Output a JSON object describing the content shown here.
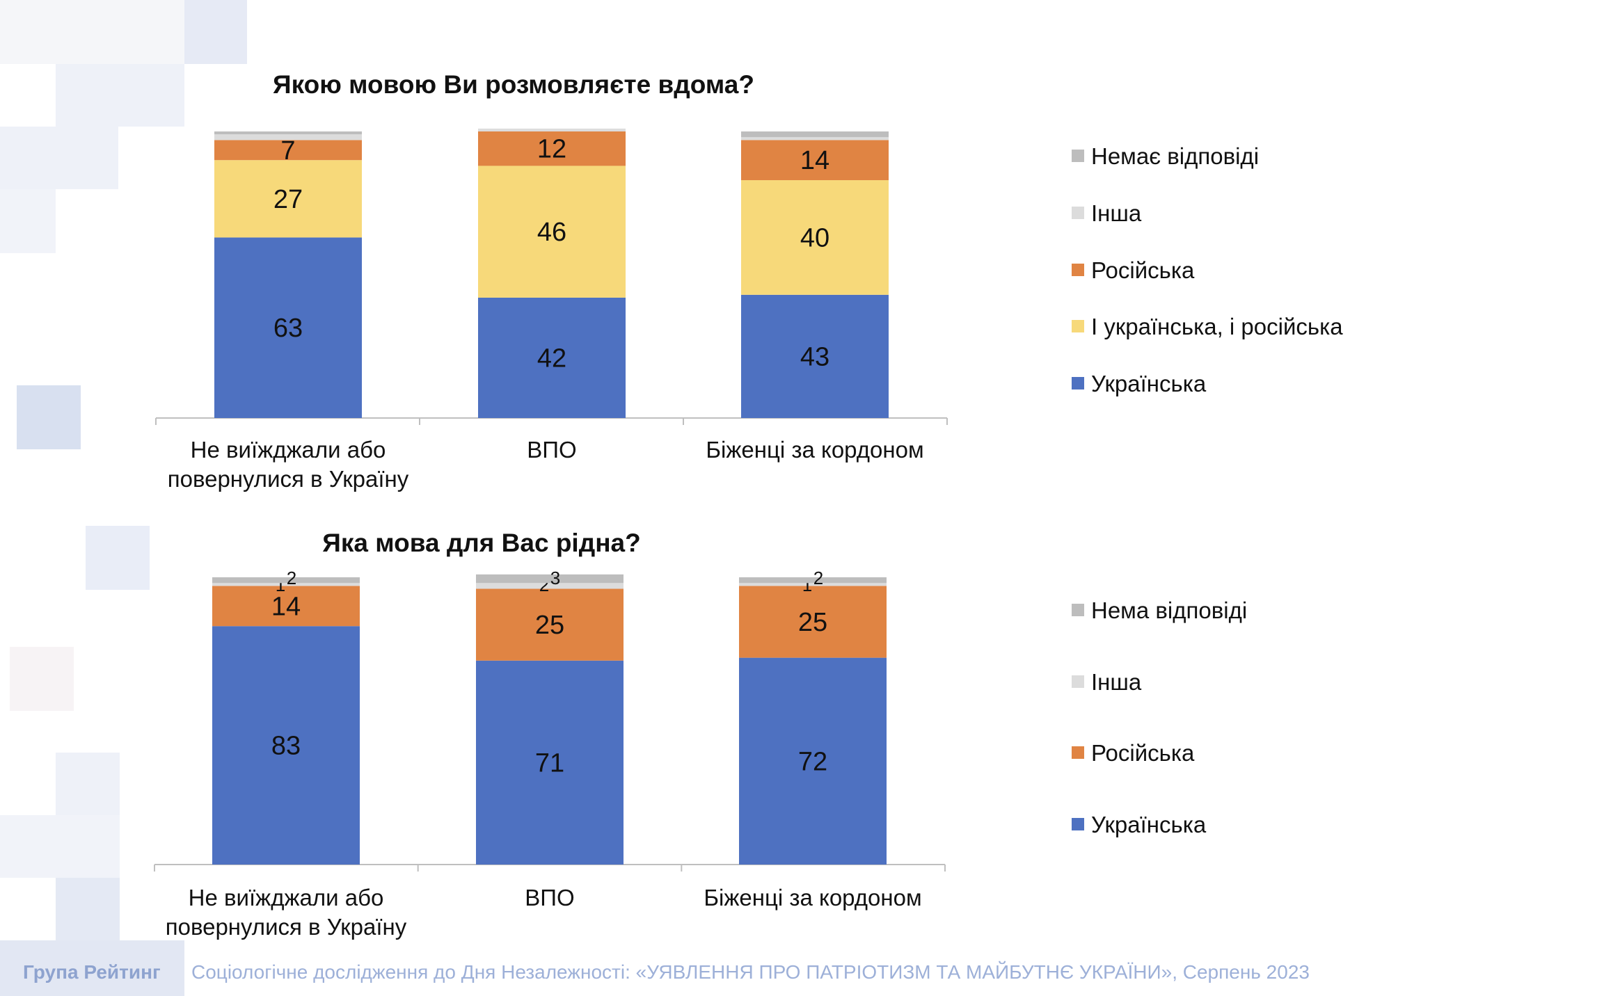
{
  "footer": {
    "brand": "Група Рейтинг",
    "text": "Соціологічне дослідження до Дня Незалежності: «УЯВЛЕННЯ ПРО ПАТРІОТИЗМ ТА МАЙБУТНЄ УКРАЇНИ», Серпень 2023"
  },
  "chart_data": [
    {
      "type": "bar",
      "stacked": true,
      "title": "Якою мовою Ви розмовляєте вдома?",
      "categories": [
        [
          "Не виїжджали або",
          "повернулися в Україну"
        ],
        [
          "ВПО"
        ],
        [
          "Біженці за кордоном"
        ]
      ],
      "ylim": [
        0,
        100
      ],
      "legend_position": "right",
      "series": [
        {
          "name": "Українська",
          "color": "#4e71c1",
          "values": [
            63,
            42,
            43
          ],
          "labels": [
            "63",
            "42",
            "43"
          ]
        },
        {
          "name": "І українська, і російська",
          "color": "#f7d97a",
          "values": [
            27,
            46,
            40
          ],
          "labels": [
            "27",
            "46",
            "40"
          ]
        },
        {
          "name": "Російська",
          "color": "#e08443",
          "values": [
            7,
            12,
            14
          ],
          "labels": [
            "7",
            "12",
            "14"
          ]
        },
        {
          "name": "Інша",
          "color": "#dcdcdc",
          "values": [
            2,
            1,
            1
          ],
          "labels": [
            "",
            "",
            ""
          ]
        },
        {
          "name": "Немає відповіді",
          "color": "#bdbdbd",
          "values": [
            1,
            0,
            2
          ],
          "labels": [
            "",
            "",
            ""
          ]
        }
      ]
    },
    {
      "type": "bar",
      "stacked": true,
      "title": "Яка мова для Вас рідна?",
      "categories": [
        [
          "Не виїжджали або",
          "повернулися в Україну"
        ],
        [
          "ВПО"
        ],
        [
          "Біженці за кордоном"
        ]
      ],
      "ylim": [
        0,
        100
      ],
      "legend_position": "right",
      "series": [
        {
          "name": "Українська",
          "color": "#4e71c1",
          "values": [
            83,
            71,
            72
          ],
          "labels": [
            "83",
            "71",
            "72"
          ]
        },
        {
          "name": "Російська",
          "color": "#e08443",
          "values": [
            14,
            25,
            25
          ],
          "labels": [
            "14",
            "25",
            "25"
          ]
        },
        {
          "name": "Інша",
          "color": "#dcdcdc",
          "values": [
            1,
            2,
            1
          ],
          "labels": [
            "1",
            "2",
            "1"
          ]
        },
        {
          "name": "Нема відповіді",
          "color": "#bdbdbd",
          "values": [
            2,
            3,
            2
          ],
          "labels": [
            "2",
            "3",
            "2"
          ]
        }
      ]
    }
  ]
}
